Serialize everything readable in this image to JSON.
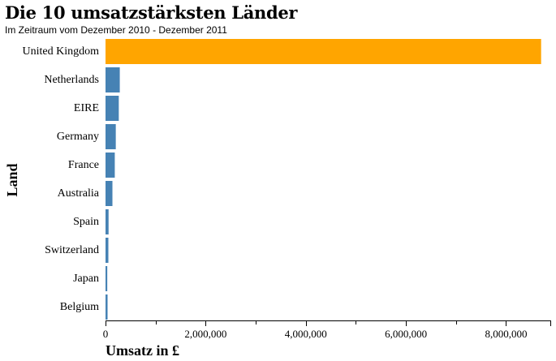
{
  "chart_data": {
    "type": "bar",
    "orientation": "horizontal",
    "title": "Die 10 umsatzstärksten Länder",
    "subtitle": "Im Zeitraum vom Dezember 2010 - Dezember 2011",
    "xlabel": "Umsatz in £",
    "ylabel": "Land",
    "categories": [
      "United Kingdom",
      "Netherlands",
      "EIRE",
      "Germany",
      "France",
      "Australia",
      "Spain",
      "Switzerland",
      "Japan",
      "Belgium"
    ],
    "values": [
      8700000,
      285000,
      265000,
      205000,
      185000,
      138000,
      61000,
      57000,
      35000,
      41000
    ],
    "xlim": [
      0,
      8900000
    ],
    "xticks": [
      0,
      2000000,
      4000000,
      6000000,
      8000000
    ],
    "xtick_labels": [
      "0",
      "2,000,000",
      "4,000,000",
      "6,000,000",
      "8,000,000"
    ],
    "highlight_color": "#ffa500",
    "bar_color": "#4682b4",
    "highlight_index": 0
  }
}
